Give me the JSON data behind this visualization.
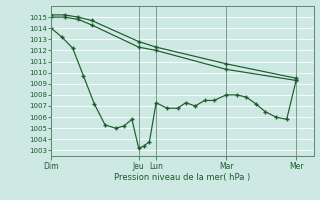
{
  "background_color": "#cee8e4",
  "grid_color": "#b8d8d4",
  "line_color": "#1a5c2a",
  "vline_color": "#7a9a8a",
  "xlabel": "Pression niveau de la mer( hPa )",
  "ylim": [
    1002.5,
    1016.0
  ],
  "yticks": [
    1003,
    1004,
    1005,
    1006,
    1007,
    1008,
    1009,
    1010,
    1011,
    1012,
    1013,
    1014,
    1015
  ],
  "day_labels": [
    "Dim",
    "Jeu",
    "Lun",
    "Mar",
    "Mer"
  ],
  "day_positions": [
    0,
    65,
    78,
    130,
    182
  ],
  "xmin": 0,
  "xmax": 195,
  "line1_x": [
    0,
    10,
    20,
    30,
    65,
    78,
    130,
    182
  ],
  "line1_y": [
    1015.0,
    1015.0,
    1014.8,
    1014.3,
    1012.3,
    1012.0,
    1010.3,
    1009.3
  ],
  "line2_x": [
    0,
    10,
    20,
    30,
    65,
    78,
    130,
    182
  ],
  "line2_y": [
    1015.2,
    1015.2,
    1015.0,
    1014.7,
    1012.8,
    1012.3,
    1010.8,
    1009.5
  ],
  "line3_x": [
    0,
    8,
    16,
    24,
    32,
    40,
    48,
    54,
    60,
    65,
    69,
    73,
    78,
    86,
    94,
    100,
    107,
    114,
    121,
    130,
    138,
    145,
    152,
    159,
    167,
    175,
    182
  ],
  "line3_y": [
    1014.0,
    1013.2,
    1012.2,
    1009.7,
    1007.2,
    1005.3,
    1005.0,
    1005.2,
    1005.8,
    1003.2,
    1003.4,
    1003.8,
    1007.3,
    1006.8,
    1006.8,
    1007.3,
    1007.0,
    1007.5,
    1007.5,
    1008.0,
    1008.0,
    1007.8,
    1007.2,
    1006.5,
    1006.0,
    1005.8,
    1009.3
  ]
}
